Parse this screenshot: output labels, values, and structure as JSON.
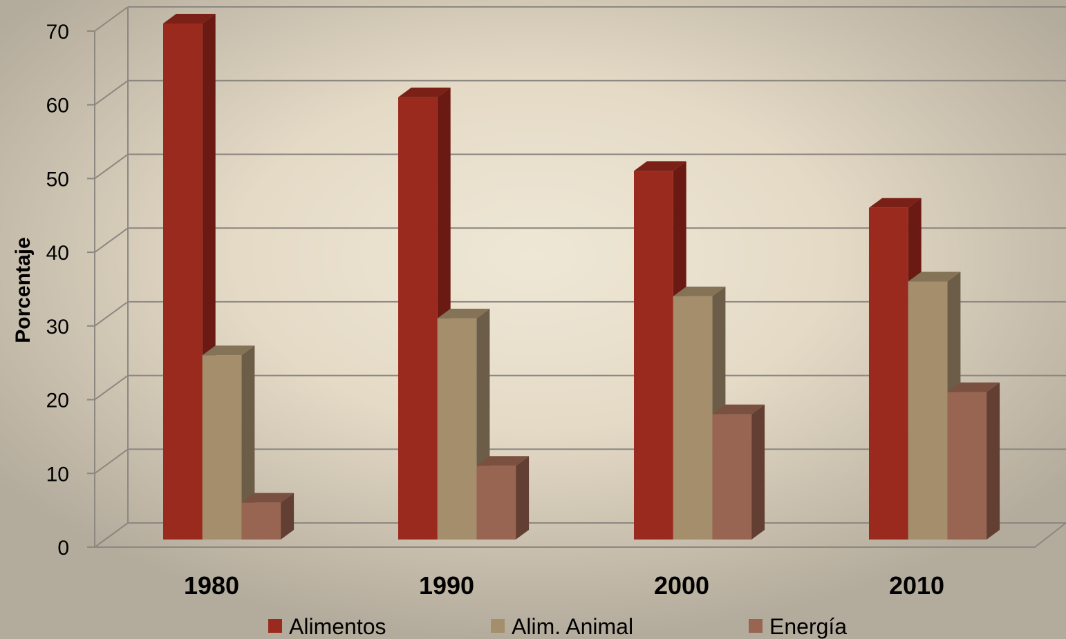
{
  "chart_data": {
    "type": "bar",
    "categories": [
      "1980",
      "1990",
      "2000",
      "2010"
    ],
    "series": [
      {
        "name": "Alimentos",
        "values": [
          70,
          60,
          50,
          45
        ]
      },
      {
        "name": "Alim. Animal",
        "values": [
          25,
          30,
          33,
          35
        ]
      },
      {
        "name": "Energía",
        "values": [
          5,
          10,
          17,
          20
        ]
      }
    ],
    "ylabel": "Porcentaje",
    "xlabel": "",
    "ylim": [
      0,
      70
    ],
    "yticks": [
      0,
      10,
      20,
      30,
      40,
      50,
      60,
      70
    ],
    "grid": true,
    "legend": "bottom",
    "style": "3d-clustered-column",
    "colors": {
      "Alimentos": {
        "front": "#9a2a1e",
        "side": "#6b1a13",
        "top": "#7a2017"
      },
      "Alim. Animal": {
        "front": "#a48e6b",
        "side": "#6b5d47",
        "top": "#857357"
      },
      "Energía": {
        "front": "#976552",
        "side": "#633f33",
        "top": "#7a5040"
      },
      "grid": "#8c8780"
    }
  }
}
